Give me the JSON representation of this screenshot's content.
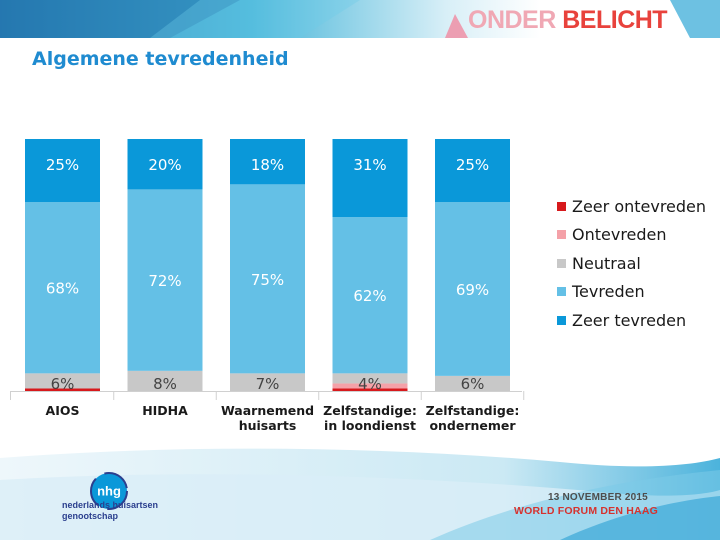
{
  "header": {
    "logo_part1": "ONDER",
    "logo_part2": "BELICHT"
  },
  "slide": {
    "title": "Algemene tevredenheid"
  },
  "footer": {
    "org_logo_text": "nhg",
    "org_name_lines": [
      "nederlands huisartsen",
      "genootschap"
    ],
    "event_date": "13 NOVEMBER 2015",
    "event_name": "WORLD FORUM DEN HAAG"
  },
  "colors": {
    "zeer_ontevreden": "#d7191c",
    "ontevreden": "#f4a1a8",
    "neutraal": "#c8c8c8",
    "tevreden": "#64c0e6",
    "zeer_tevreden": "#0a98d9",
    "title": "#1f8bd0"
  },
  "chart_data": {
    "type": "bar",
    "stacked": true,
    "normalized": true,
    "title": "Algemene tevredenheid",
    "categories": [
      [
        "AIOS"
      ],
      [
        "HIDHA"
      ],
      [
        "Waarnemend",
        "huisarts"
      ],
      [
        "Zelfstandige:",
        "in loondienst"
      ],
      [
        "Zelfstandige:",
        "ondernemer"
      ]
    ],
    "series": [
      {
        "name": "Zeer ontevreden",
        "values": [
          1,
          0,
          0,
          1,
          0
        ],
        "data_labels": [
          "",
          "",
          "",
          "",
          ""
        ]
      },
      {
        "name": "Ontevreden",
        "values": [
          0,
          0,
          0,
          2,
          0
        ],
        "data_labels": [
          "",
          "",
          "",
          "",
          ""
        ]
      },
      {
        "name": "Neutraal",
        "values": [
          6,
          8,
          7,
          4,
          6
        ],
        "data_labels": [
          "6%",
          "8%",
          "7%",
          "4%",
          "6%"
        ]
      },
      {
        "name": "Tevreden",
        "values": [
          68,
          72,
          75,
          62,
          69
        ],
        "data_labels": [
          "68%",
          "72%",
          "75%",
          "62%",
          "69%"
        ]
      },
      {
        "name": "Zeer tevreden",
        "values": [
          25,
          20,
          18,
          31,
          25
        ],
        "data_labels": [
          "25%",
          "20%",
          "18%",
          "31%",
          "25%"
        ]
      }
    ],
    "legend": {
      "position": "right",
      "order": [
        "Zeer ontevreden",
        "Ontevreden",
        "Neutraal",
        "Tevreden",
        "Zeer tevreden"
      ]
    },
    "ylim": [
      0,
      100
    ],
    "xlabel": "",
    "ylabel": ""
  }
}
